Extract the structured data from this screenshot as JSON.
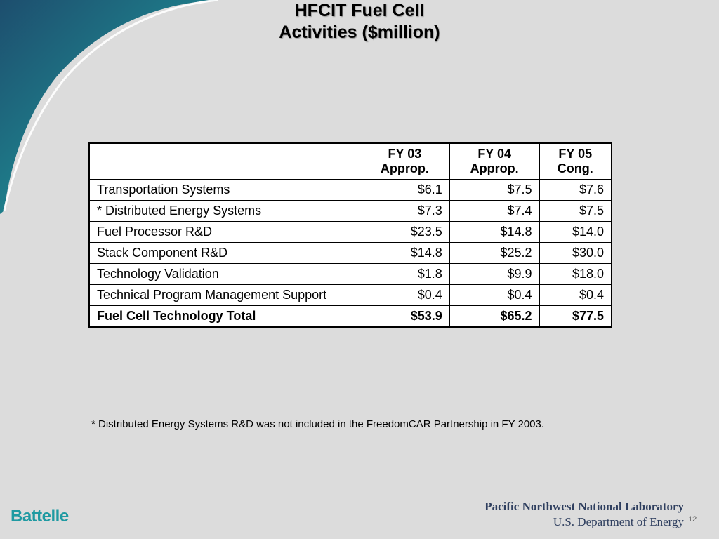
{
  "title": {
    "line1": "HFCIT Fuel Cell",
    "line2": "Activities ($million)"
  },
  "table": {
    "headers": [
      {
        "line1": "",
        "line2": ""
      },
      {
        "line1": "FY 03",
        "line2": "Approp."
      },
      {
        "line1": "FY 04",
        "line2": "Approp."
      },
      {
        "line1": "FY 05",
        "line2": "Cong."
      }
    ],
    "rows": [
      {
        "label": "Transportation Systems",
        "fy03": "$6.1",
        "fy04": "$7.5",
        "fy05": "$7.6"
      },
      {
        "label": "* Distributed Energy Systems",
        "fy03": "$7.3",
        "fy04": "$7.4",
        "fy05": "$7.5"
      },
      {
        "label": "Fuel Processor R&D",
        "fy03": "$23.5",
        "fy04": "$14.8",
        "fy05": "$14.0"
      },
      {
        "label": "Stack Component R&D",
        "fy03": "$14.8",
        "fy04": "$25.2",
        "fy05": "$30.0"
      },
      {
        "label": "Technology Validation",
        "fy03": "$1.8",
        "fy04": "$9.9",
        "fy05": "$18.0"
      },
      {
        "label": "Technical Program Management Support",
        "fy03": "$0.4",
        "fy04": "$0.4",
        "fy05": "$0.4"
      }
    ],
    "total": {
      "label": "Fuel Cell Technology Total",
      "fy03": "$53.9",
      "fy04": "$65.2",
      "fy05": "$77.5"
    }
  },
  "footnote": "* Distributed Energy Systems R&D was not included in the FreedomCAR Partnership in FY 2003.",
  "footer": {
    "battelle_logo": "Battelle",
    "lab_name": "Pacific Northwest National Laboratory",
    "department": "U.S. Department of Energy",
    "page_number": "12"
  },
  "colors": {
    "background": "#dcdcdc",
    "swoosh_dark": "#1d4e6e",
    "swoosh_teal": "#1f9aa2",
    "logo_teal": "#1f9aa2",
    "pnnl_text": "#2f3f5f"
  }
}
